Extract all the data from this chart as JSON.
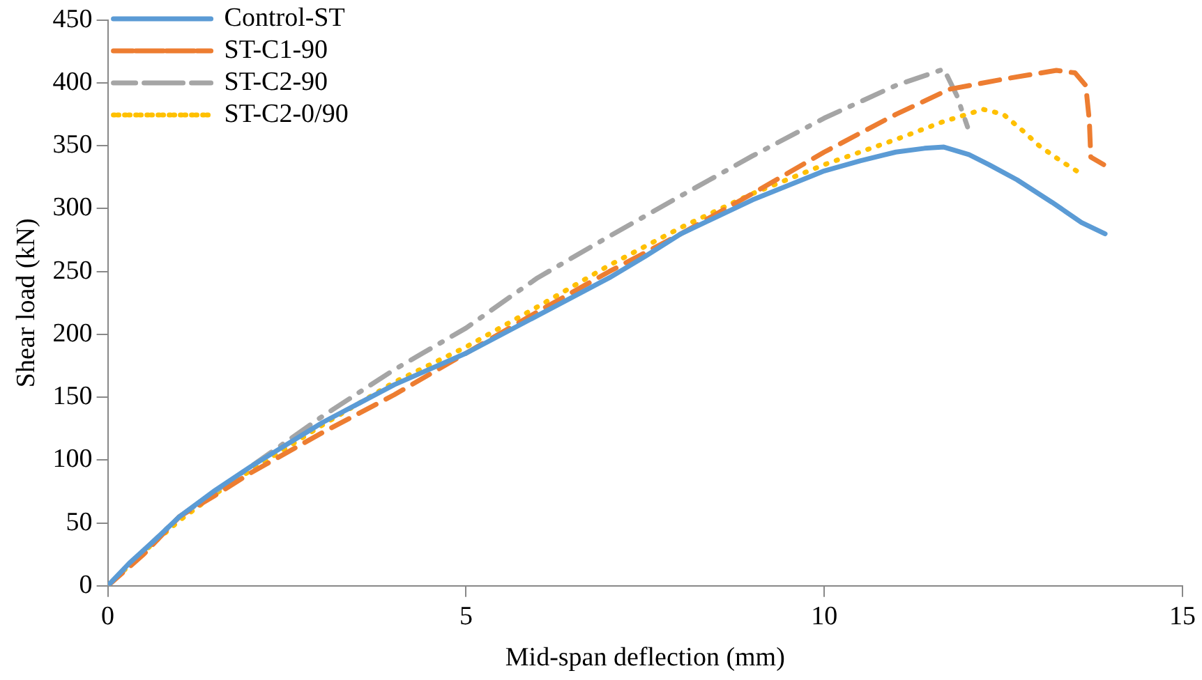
{
  "chart_data": {
    "type": "line",
    "xlabel": "Mid-span deflection (mm)",
    "ylabel": "Shear load (kN)",
    "xlim": [
      0,
      15
    ],
    "xticks": [
      0,
      5,
      10,
      15
    ],
    "ylim": [
      0,
      450
    ],
    "yticks": [
      0,
      50,
      100,
      150,
      200,
      250,
      300,
      350,
      400,
      450
    ],
    "grid": false,
    "legend": "top left",
    "marker": "none",
    "series": [
      {
        "name": "Control-ST",
        "color": "#5b9bd5",
        "line_style": "solid",
        "x": [
          0,
          0.3,
          0.63,
          1,
          1.5,
          2,
          3,
          4,
          5,
          6,
          7,
          7.5,
          8,
          9,
          10,
          10.5,
          11,
          11.4,
          11.67,
          12.02,
          12.3,
          12.69,
          13.18,
          13.59,
          13.92
        ],
        "values": [
          0,
          18,
          35,
          55,
          76,
          95,
          130,
          160,
          185,
          215,
          245,
          262,
          280,
          307,
          330,
          338,
          345,
          348,
          349,
          343,
          335,
          323,
          305,
          289,
          280
        ]
      },
      {
        "name": "ST-C1-90",
        "color": "#ed7d31",
        "line_style": "dashed",
        "x": [
          0,
          0.5,
          1,
          1.5,
          2,
          3,
          4,
          5,
          6,
          7,
          8,
          9,
          10,
          11,
          11.75,
          12.5,
          13.24,
          13.5,
          13.65,
          13.7,
          13.72,
          13.9
        ],
        "values": [
          0,
          25,
          55,
          72,
          90,
          122,
          152,
          185,
          218,
          250,
          280,
          312,
          345,
          375,
          395,
          403,
          410,
          408,
          398,
          370,
          341,
          335
        ]
      },
      {
        "name": "ST-C2-90",
        "color": "#a5a5a5",
        "line_style": "dashdot",
        "x": [
          0,
          0.5,
          1,
          1.5,
          2,
          3,
          4,
          5,
          5.62,
          6,
          7,
          7.93,
          9,
          10,
          11,
          11.67,
          11.85,
          12.0
        ],
        "values": [
          0,
          28,
          55,
          75,
          95,
          135,
          172,
          205,
          230,
          245,
          278,
          308,
          342,
          372,
          398,
          411,
          390,
          365
        ]
      },
      {
        "name": "ST-C2-0/90",
        "color": "#ffc000",
        "line_style": "dotted",
        "x": [
          0,
          0.5,
          1,
          1.5,
          2,
          3,
          4,
          5,
          6,
          7,
          8,
          9,
          10,
          11,
          11.65,
          12.22,
          12.5,
          12.77,
          13.0,
          13.3,
          13.55
        ],
        "values": [
          0,
          27,
          52,
          73,
          92,
          128,
          162,
          190,
          222,
          255,
          285,
          312,
          335,
          355,
          369,
          379,
          375,
          362,
          350,
          338,
          329
        ]
      }
    ]
  }
}
